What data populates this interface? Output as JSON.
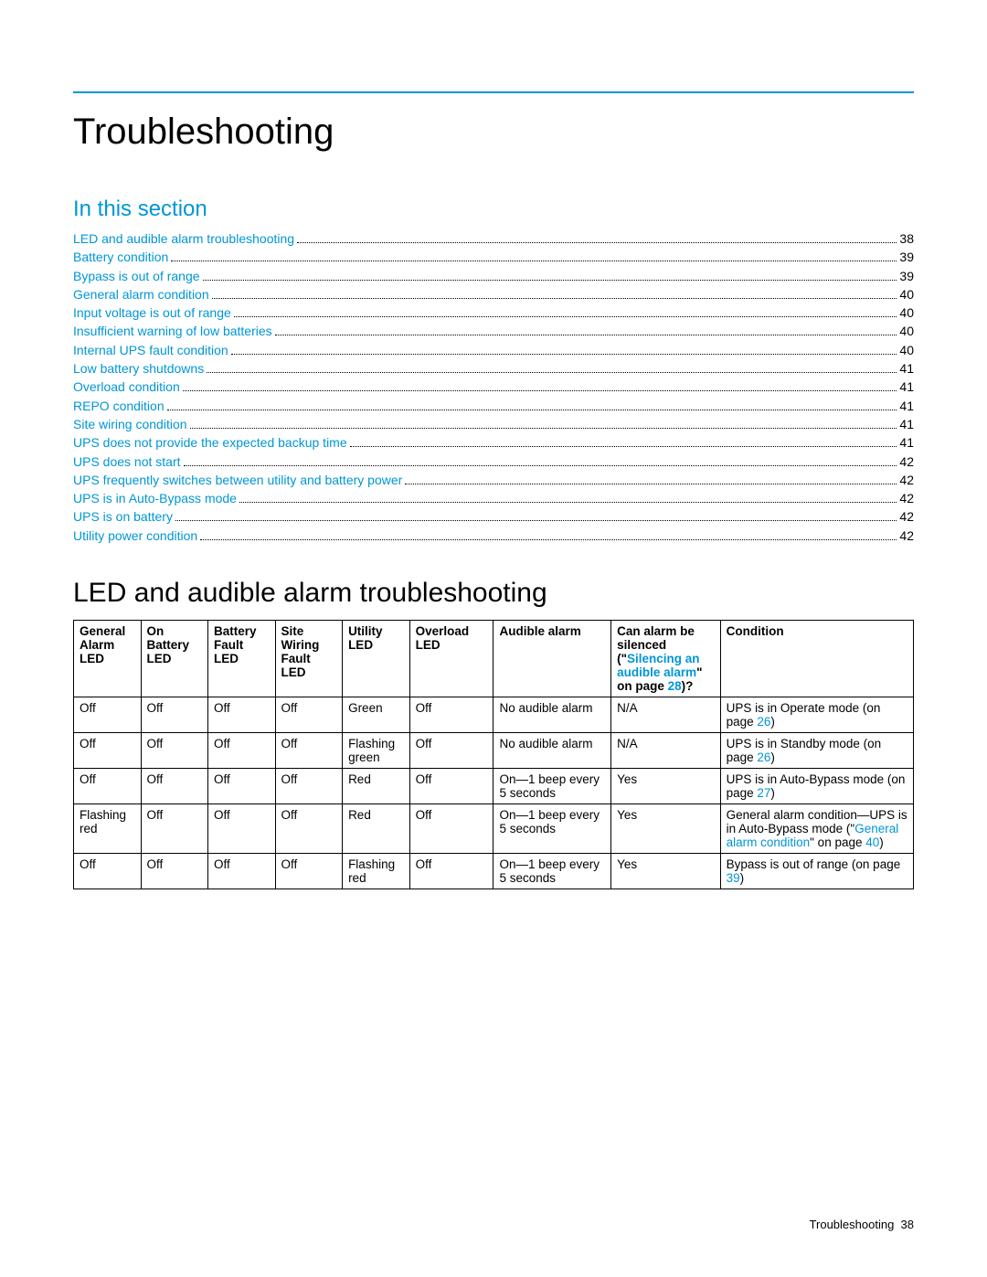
{
  "colors": {
    "accent": "#0096d6",
    "text": "#000000",
    "bg": "#ffffff"
  },
  "typography": {
    "h1_size": 40,
    "h2_blue_size": 24,
    "h2_black_size": 30,
    "body_size": 14,
    "table_size": 13.5
  },
  "title": "Troubleshooting",
  "section_label": "In this section",
  "toc": [
    {
      "label": "LED and audible alarm troubleshooting",
      "page": "38"
    },
    {
      "label": "Battery condition",
      "page": "39"
    },
    {
      "label": "Bypass is out of range",
      "page": "39"
    },
    {
      "label": "General alarm condition",
      "page": "40"
    },
    {
      "label": "Input voltage is out of range",
      "page": "40"
    },
    {
      "label": "Insufficient warning of low batteries",
      "page": "40"
    },
    {
      "label": "Internal UPS fault condition",
      "page": "40"
    },
    {
      "label": "Low battery shutdowns",
      "page": "41"
    },
    {
      "label": "Overload condition",
      "page": "41"
    },
    {
      "label": "REPO condition",
      "page": "41"
    },
    {
      "label": "Site wiring condition",
      "page": "41"
    },
    {
      "label": "UPS does not provide the expected backup time",
      "page": "41"
    },
    {
      "label": "UPS does not start",
      "page": "42"
    },
    {
      "label": "UPS frequently switches between utility and battery power",
      "page": "42"
    },
    {
      "label": "UPS is in Auto-Bypass mode",
      "page": "42"
    },
    {
      "label": "UPS is on battery",
      "page": "42"
    },
    {
      "label": "Utility power condition",
      "page": "42"
    }
  ],
  "subheading": "LED and audible alarm troubleshooting",
  "table": {
    "col_widths": [
      "8%",
      "8%",
      "8%",
      "8%",
      "8%",
      "10%",
      "14%",
      "13%",
      "23%"
    ],
    "header": {
      "c0": "General Alarm LED",
      "c1": "On Battery LED",
      "c2": "Battery Fault LED",
      "c3": "Site Wiring Fault LED",
      "c4": "Utility LED",
      "c5": "Overload LED",
      "c6": "Audible alarm",
      "c7_pre": "Can alarm be silenced (\"",
      "c7_link": "Silencing an audible alarm",
      "c7_post": "\" on page ",
      "c7_page": "28",
      "c7_end": ")?",
      "c8": "Condition"
    },
    "rows": [
      {
        "c0": "Off",
        "c1": "Off",
        "c2": "Off",
        "c3": "Off",
        "c4": "Green",
        "c5": "Off",
        "c6": "No audible alarm",
        "c7": "N/A",
        "c8_pre": "UPS is in Operate mode (on page ",
        "c8_link": "26",
        "c8_post": ")"
      },
      {
        "c0": "Off",
        "c1": "Off",
        "c2": "Off",
        "c3": "Off",
        "c4": "Flashing green",
        "c5": "Off",
        "c6": "No audible alarm",
        "c7": "N/A",
        "c8_pre": "UPS is in Standby mode (on page ",
        "c8_link": "26",
        "c8_post": ")"
      },
      {
        "c0": "Off",
        "c1": "Off",
        "c2": "Off",
        "c3": "Off",
        "c4": "Red",
        "c5": "Off",
        "c6": "On—1 beep every 5 seconds",
        "c7": "Yes",
        "c8_pre": "UPS is in Auto-Bypass mode (on page ",
        "c8_link": "27",
        "c8_post": ")"
      },
      {
        "c0": "Flashing red",
        "c1": "Off",
        "c2": "Off",
        "c3": "Off",
        "c4": "Red",
        "c5": "Off",
        "c6": "On—1 beep every 5 seconds",
        "c7": "Yes",
        "c8_pre": "General alarm condition—UPS is in Auto-Bypass mode (\"",
        "c8_link": "General alarm condition",
        "c8_post": "\" on page ",
        "c8_link2": "40",
        "c8_post2": ")"
      },
      {
        "c0": "Off",
        "c1": "Off",
        "c2": "Off",
        "c3": "Off",
        "c4": "Flashing red",
        "c5": "Off",
        "c6": "On—1 beep every 5 seconds",
        "c7": "Yes",
        "c8_pre": "Bypass is out of range (on page ",
        "c8_link": "39",
        "c8_post": ")"
      }
    ]
  },
  "footer": {
    "label": "Troubleshooting",
    "page": "38"
  }
}
